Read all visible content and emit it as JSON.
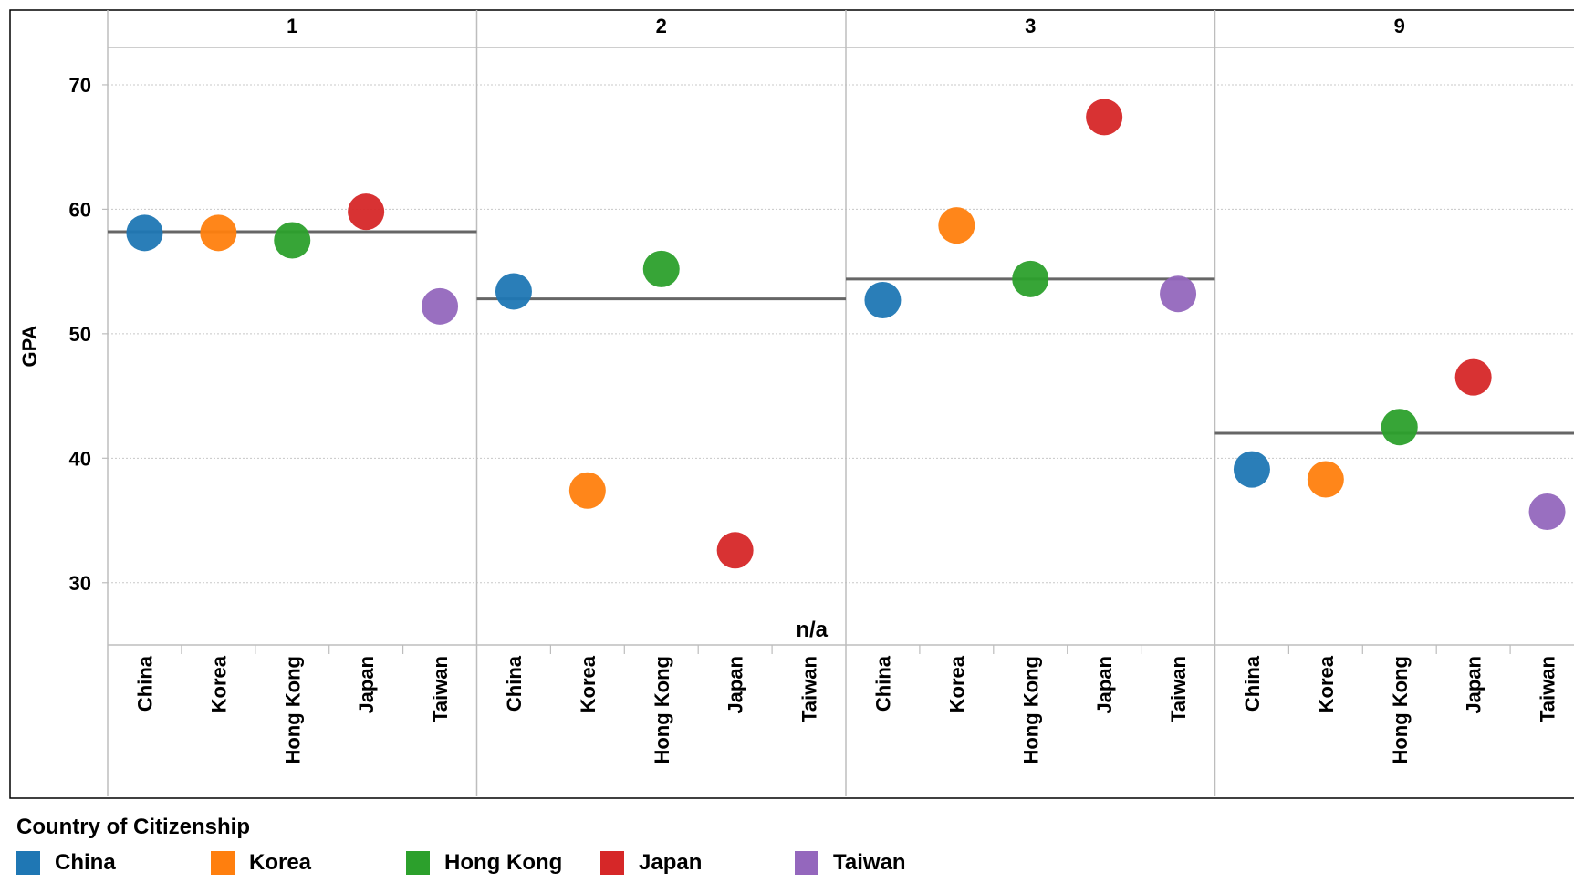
{
  "chart_data": {
    "type": "scatter",
    "ylabel": "GPA",
    "yticks": [
      30,
      40,
      50,
      60,
      70
    ],
    "ylim": [
      25,
      73
    ],
    "grid": true,
    "categories": [
      "China",
      "Korea",
      "Hong Kong",
      "Japan",
      "Taiwan"
    ],
    "panels": [
      {
        "label": "1",
        "points": [
          58.1,
          58.1,
          57.5,
          59.8,
          52.2
        ],
        "average": 58.2,
        "note": ""
      },
      {
        "label": "2",
        "points": [
          53.4,
          37.4,
          55.2,
          32.6,
          null
        ],
        "average": 52.8,
        "note": "n/a"
      },
      {
        "label": "3",
        "points": [
          52.7,
          58.7,
          54.4,
          67.4,
          53.2
        ],
        "average": 54.4,
        "note": ""
      },
      {
        "label": "9",
        "points": [
          39.1,
          38.3,
          42.5,
          46.5,
          35.7
        ],
        "average": 42.0,
        "note": ""
      }
    ],
    "legend": {
      "title": "Country of Citizenship",
      "position": "bottom",
      "items": [
        {
          "name": "China",
          "color": "#1f77b4"
        },
        {
          "name": "Korea",
          "color": "#ff7f0e"
        },
        {
          "name": "Hong Kong",
          "color": "#2ca02c"
        },
        {
          "name": "Japan",
          "color": "#d62728"
        },
        {
          "name": "Taiwan",
          "color": "#9467bd"
        }
      ]
    }
  }
}
